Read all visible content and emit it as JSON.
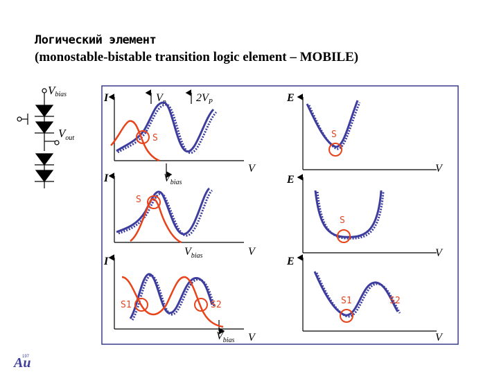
{
  "title": {
    "line1": "Логический элемент",
    "line2": "(monostable-bistable transition logic element – MOBILE)"
  },
  "circuit": {
    "vbias_label": "V",
    "vbias_sub": "bias",
    "vout_label": "V",
    "vout_sub": "out"
  },
  "plots": {
    "top_left": {
      "axis_y": "I",
      "axis_x": "V",
      "marker1": "V",
      "marker1_sub": "p",
      "marker2": "2V",
      "marker2_sub": "P",
      "state": "S"
    },
    "top_right": {
      "axis_y": "E",
      "axis_x": "V",
      "state": "S"
    },
    "mid_left": {
      "axis_y": "I",
      "axis_x": "V",
      "bias": "V",
      "bias_sub": "bias",
      "state": "S"
    },
    "mid_right": {
      "axis_y": "E",
      "axis_x": "V",
      "state": "S"
    },
    "bot_left": {
      "axis_y": "I",
      "axis_x": "V",
      "bias": "V",
      "bias_sub": "bias",
      "state1": "S1",
      "state2": "S2"
    },
    "bot_right": {
      "axis_y": "E",
      "axis_x": "V",
      "state1": "S1",
      "state2": "S2"
    }
  },
  "logo": {
    "text": "Au",
    "superscript": "197"
  },
  "colors": {
    "frame": "#3a3a8c",
    "blue_curve": "#3d3d9e",
    "red_curve": "#e8431a"
  }
}
